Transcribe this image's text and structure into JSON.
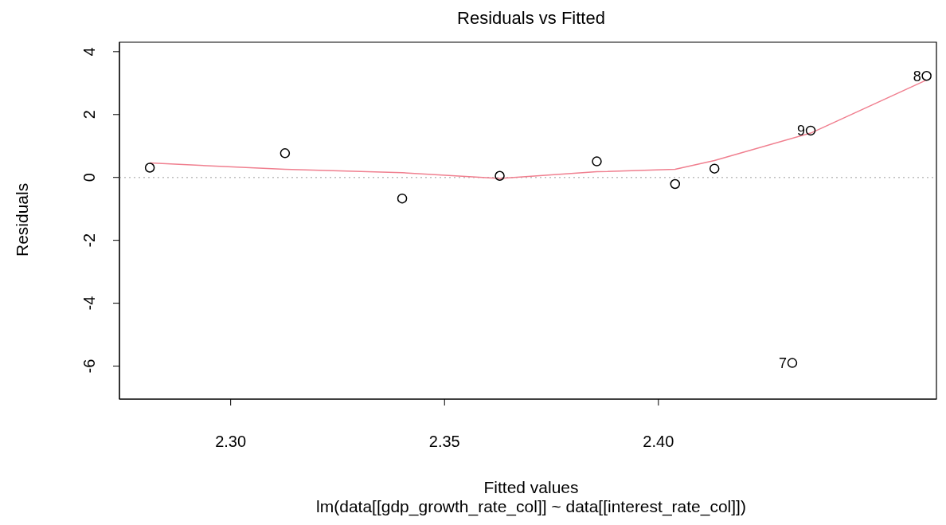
{
  "chart_data": {
    "type": "scatter",
    "title": "Residuals vs Fitted",
    "subtitle": "lm(data[[gdp_growth_rate_col]] ~ data[[interest_rate_col]])",
    "xlabel": "Fitted values",
    "ylabel": "Residuals",
    "marker": "circle",
    "xlim": [
      2.274,
      2.465
    ],
    "ylim": [
      -7.05,
      4.3
    ],
    "xticks": [
      {
        "value": 2.3,
        "label": "2.30"
      },
      {
        "value": 2.35,
        "label": "2.35"
      },
      {
        "value": 2.4,
        "label": "2.40"
      }
    ],
    "yticks": [
      -6,
      -4,
      -2,
      0,
      2,
      4
    ],
    "series": [
      {
        "color": "#000000",
        "x": [
          2.2811,
          2.3127,
          2.3401,
          2.3629,
          2.3856,
          2.4039,
          2.4131,
          2.4313,
          2.4356,
          2.4627
        ],
        "values": [
          0.31,
          0.77,
          -0.67,
          0.05,
          0.51,
          -0.21,
          0.28,
          -5.9,
          1.49,
          3.23
        ]
      },
      {
        "type": "line",
        "marker": "none",
        "color": "#f07f8f",
        "x": [
          2.2811,
          2.3127,
          2.3401,
          2.3629,
          2.3856,
          2.4039,
          2.4131,
          2.4356,
          2.4627
        ],
        "values": [
          0.46,
          0.26,
          0.15,
          -0.03,
          0.18,
          0.26,
          0.54,
          1.41,
          3.1
        ]
      }
    ],
    "ref_lines": [
      {
        "axis": "y",
        "value": 0,
        "color": "#bebebe",
        "line_style": "dotted"
      }
    ],
    "annotations": [
      {
        "text": "7",
        "x": 2.4313,
        "y": -5.9
      },
      {
        "text": "8",
        "x": 2.4627,
        "y": 3.23
      },
      {
        "text": "9",
        "x": 2.4356,
        "y": 1.49
      }
    ]
  }
}
